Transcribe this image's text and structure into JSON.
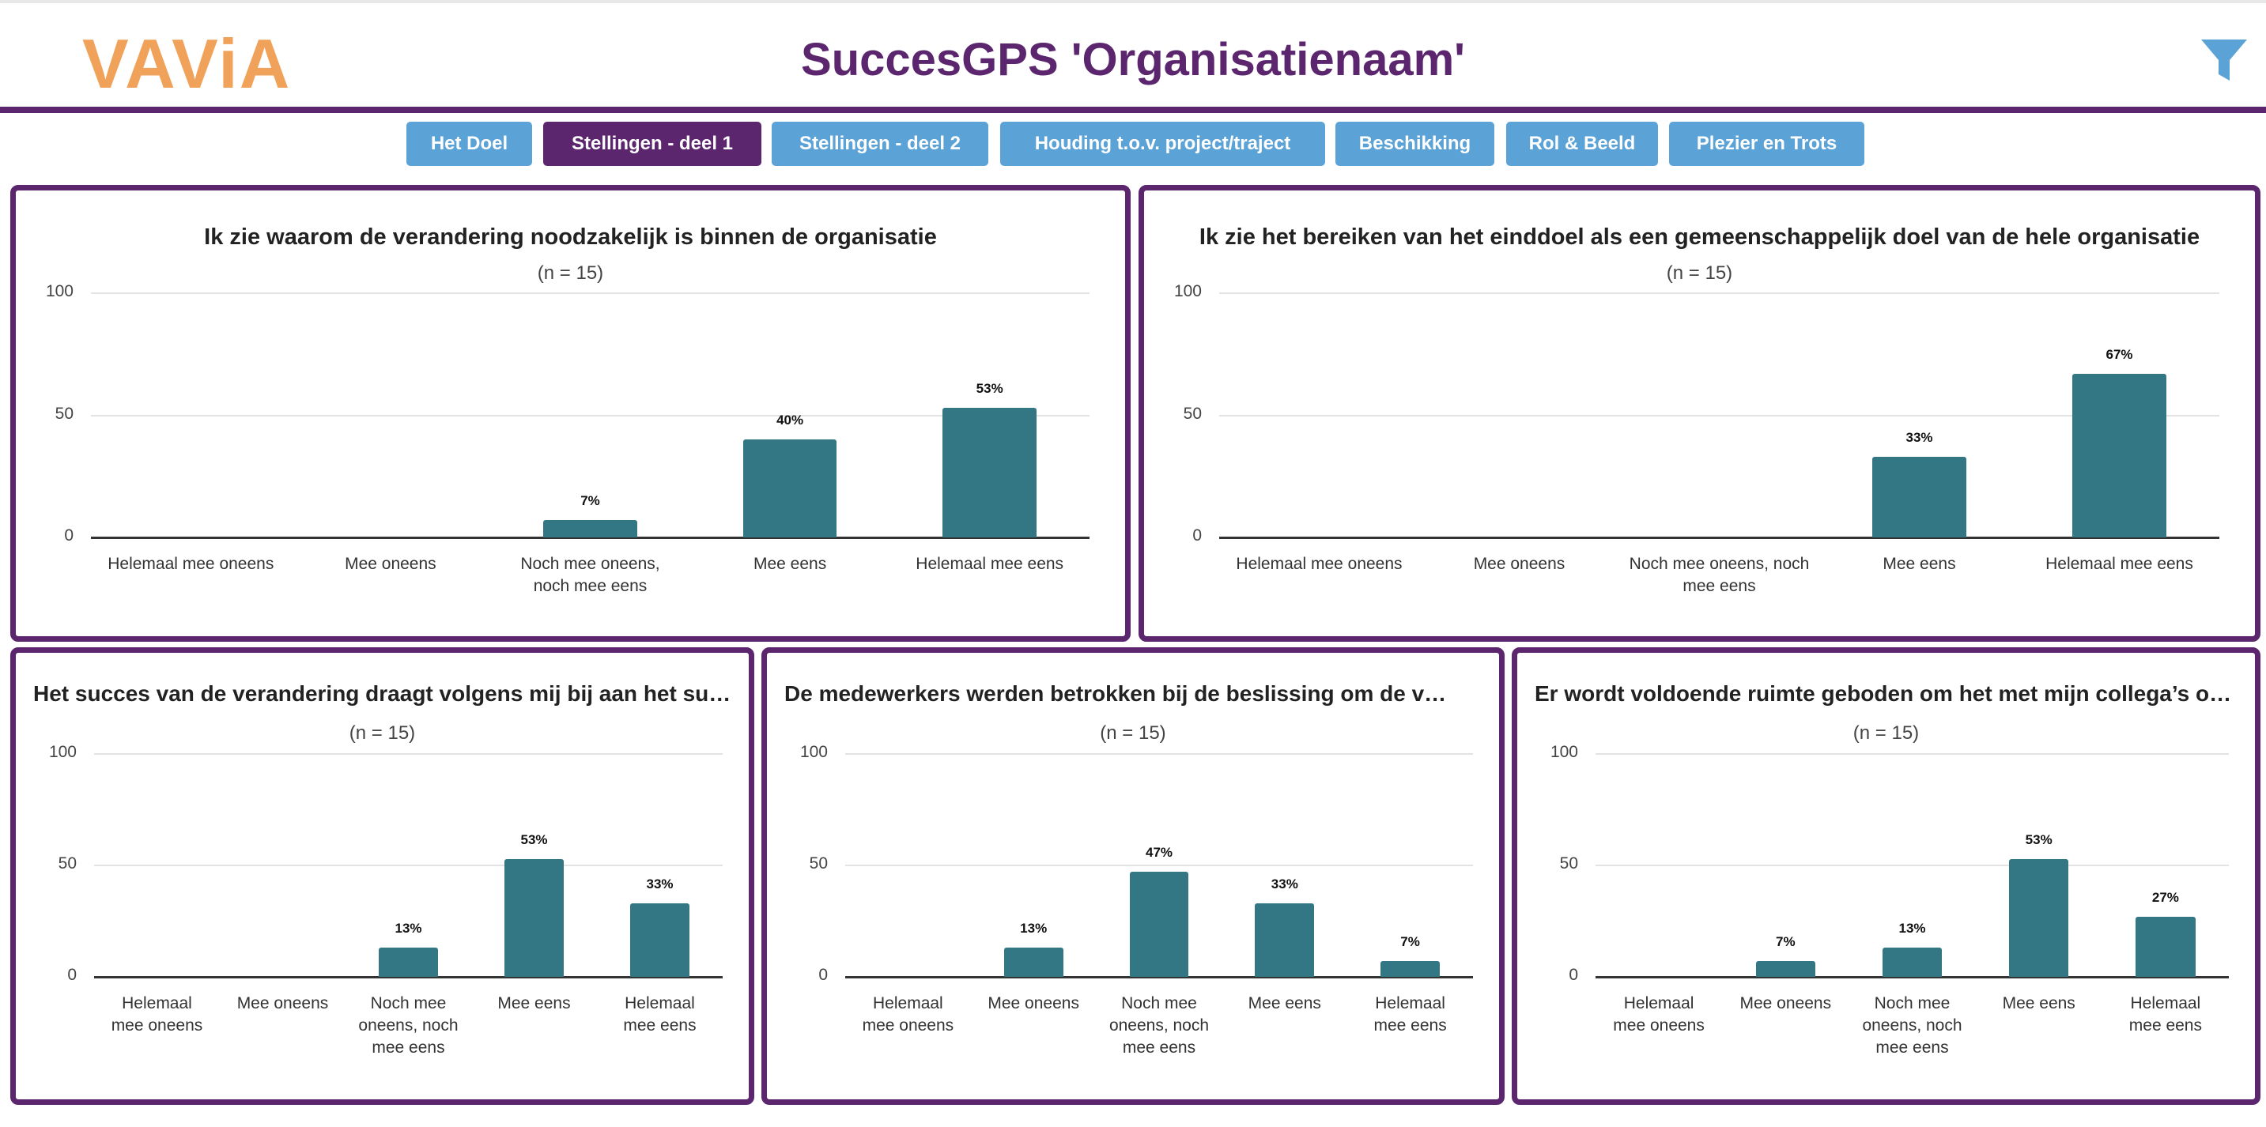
{
  "header": {
    "logo": "VAViA",
    "title": "SuccesGPS 'Organisatienaam'",
    "filter_icon": "filter-icon"
  },
  "tabs": [
    {
      "label": "Het Doel",
      "active": false
    },
    {
      "label": "Stellingen - deel 1",
      "active": true
    },
    {
      "label": "Stellingen - deel 2",
      "active": false
    },
    {
      "label": "Houding t.o.v. project/traject",
      "active": false
    },
    {
      "label": "Beschikking",
      "active": false
    },
    {
      "label": "Rol & Beeld",
      "active": false
    },
    {
      "label": "Plezier en Trots",
      "active": false
    }
  ],
  "colors": {
    "brand_purple": "#5b266e",
    "logo_orange": "#f0a25a",
    "tab_blue": "#5ba2d7",
    "bar": "#337684"
  },
  "chart_data": [
    {
      "type": "bar",
      "title": "Ik zie waarom de verandering noodzakelijk is binnen de organisatie",
      "subtitle": "(n = 15)",
      "categories": [
        "Helemaal mee oneens",
        "Mee oneens",
        "Noch mee oneens, noch mee eens",
        "Mee eens",
        "Helemaal mee eens"
      ],
      "values": [
        0,
        0,
        7,
        40,
        53
      ],
      "labels": [
        "",
        "",
        "7%",
        "40%",
        "53%"
      ],
      "ylim": [
        0,
        100
      ],
      "yticks": [
        "100",
        "50",
        "0"
      ]
    },
    {
      "type": "bar",
      "title": "Ik zie het bereiken van het einddoel als een gemeenschappelijk doel van de hele organisatie",
      "subtitle": "(n = 15)",
      "categories": [
        "Helemaal mee oneens",
        "Mee oneens",
        "Noch mee oneens, noch mee eens",
        "Mee eens",
        "Helemaal mee eens"
      ],
      "values": [
        0,
        0,
        0,
        33,
        67
      ],
      "labels": [
        "",
        "",
        "",
        "33%",
        "67%"
      ],
      "ylim": [
        0,
        100
      ],
      "yticks": [
        "100",
        "50",
        "0"
      ]
    },
    {
      "type": "bar",
      "title": "Het succes van de verandering draagt volgens mij bij aan het su…",
      "subtitle": "(n = 15)",
      "categories": [
        "Helemaal mee oneens",
        "Mee oneens",
        "Noch mee oneens, noch mee eens",
        "Mee eens",
        "Helemaal mee eens"
      ],
      "values": [
        0,
        0,
        13,
        53,
        33
      ],
      "labels": [
        "",
        "",
        "13%",
        "53%",
        "33%"
      ],
      "ylim": [
        0,
        100
      ],
      "yticks": [
        "100",
        "50",
        "0"
      ]
    },
    {
      "type": "bar",
      "title": "De medewerkers werden betrokken bij de beslissing om de v…",
      "subtitle": "(n = 15)",
      "categories": [
        "Helemaal mee oneens",
        "Mee oneens",
        "Noch mee oneens, noch mee eens",
        "Mee eens",
        "Helemaal mee eens"
      ],
      "values": [
        0,
        13,
        47,
        33,
        7
      ],
      "labels": [
        "",
        "13%",
        "47%",
        "33%",
        "7%"
      ],
      "ylim": [
        0,
        100
      ],
      "yticks": [
        "100",
        "50",
        "0"
      ]
    },
    {
      "type": "bar",
      "title": "Er wordt voldoende ruimte geboden om het met mijn collega’s o…",
      "subtitle": "(n = 15)",
      "categories": [
        "Helemaal mee oneens",
        "Mee oneens",
        "Noch mee oneens, noch mee eens",
        "Mee eens",
        "Helemaal mee eens"
      ],
      "values": [
        0,
        7,
        13,
        53,
        27
      ],
      "labels": [
        "",
        "7%",
        "13%",
        "53%",
        "27%"
      ],
      "ylim": [
        0,
        100
      ],
      "yticks": [
        "100",
        "50",
        "0"
      ]
    }
  ]
}
